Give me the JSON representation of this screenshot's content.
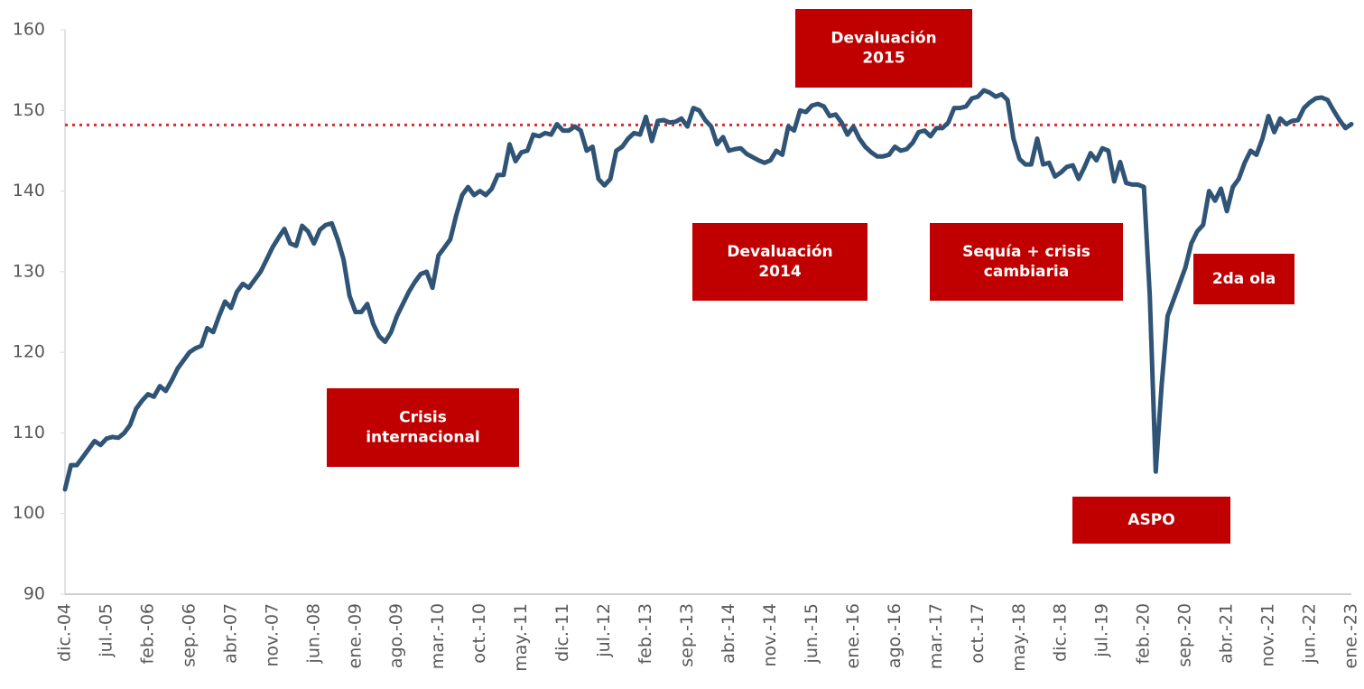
{
  "chart_data": {
    "type": "line",
    "categories": [
      "dic.-04",
      null,
      null,
      null,
      null,
      null,
      null,
      "jul.-05",
      null,
      null,
      null,
      null,
      null,
      null,
      "feb.-06",
      null,
      null,
      null,
      null,
      null,
      null,
      "sep.-06",
      null,
      null,
      null,
      null,
      null,
      null,
      "abr.-07",
      null,
      null,
      null,
      null,
      null,
      null,
      "nov.-07",
      null,
      null,
      null,
      null,
      null,
      null,
      "jun.-08",
      null,
      null,
      null,
      null,
      null,
      null,
      "ene.-09",
      null,
      null,
      null,
      null,
      null,
      null,
      "ago.-09",
      null,
      null,
      null,
      null,
      null,
      null,
      "mar.-10",
      null,
      null,
      null,
      null,
      null,
      null,
      "oct.-10",
      null,
      null,
      null,
      null,
      null,
      null,
      "may.-11",
      null,
      null,
      null,
      null,
      null,
      null,
      "dic.-11",
      null,
      null,
      null,
      null,
      null,
      null,
      "jul.-12",
      null,
      null,
      null,
      null,
      null,
      null,
      "feb.-13",
      null,
      null,
      null,
      null,
      null,
      null,
      "sep.-13",
      null,
      null,
      null,
      null,
      null,
      null,
      "abr.-14",
      null,
      null,
      null,
      null,
      null,
      null,
      "nov.-14",
      null,
      null,
      null,
      null,
      null,
      null,
      "jun.-15",
      null,
      null,
      null,
      null,
      null,
      null,
      "ene.-16",
      null,
      null,
      null,
      null,
      null,
      null,
      "ago.-16",
      null,
      null,
      null,
      null,
      null,
      null,
      "mar.-17",
      null,
      null,
      null,
      null,
      null,
      null,
      "oct.-17",
      null,
      null,
      null,
      null,
      null,
      null,
      "may.-18",
      null,
      null,
      null,
      null,
      null,
      null,
      "dic.-18",
      null,
      null,
      null,
      null,
      null,
      null,
      "jul.-19",
      null,
      null,
      null,
      null,
      null,
      null,
      "feb.-20",
      null,
      null,
      null,
      null,
      null,
      null,
      "sep.-20",
      null,
      null,
      null,
      null,
      null,
      null,
      "abr.-21",
      null,
      null,
      null,
      null,
      null,
      null,
      "nov.-21",
      null,
      null,
      null,
      null,
      null,
      null,
      "jun.-22",
      null,
      null,
      null,
      null,
      null,
      null,
      "ene.-23"
    ],
    "values": [
      103,
      106,
      106,
      107,
      108,
      109,
      108.5,
      109.3,
      109.5,
      109.4,
      110,
      111,
      113,
      114,
      114.8,
      114.5,
      115.8,
      115.2,
      116.5,
      118,
      119,
      120,
      120.5,
      120.8,
      123,
      122.5,
      124.5,
      126.3,
      125.5,
      127.5,
      128.5,
      128,
      129,
      130,
      131.5,
      133,
      134.2,
      135.3,
      133.5,
      133.2,
      135.7,
      135,
      133.5,
      135.2,
      135.8,
      136,
      134,
      131.5,
      127,
      125,
      125,
      126,
      123.5,
      122,
      121.3,
      122.5,
      124.5,
      126,
      127.5,
      128.7,
      129.7,
      130,
      128,
      132,
      133,
      134,
      137,
      139.5,
      140.5,
      139.5,
      140,
      139.5,
      140.3,
      142,
      142,
      145.8,
      143.7,
      144.8,
      145,
      147,
      146.8,
      147.2,
      147,
      148.3,
      147.5,
      147.5,
      148,
      147.5,
      145,
      145.5,
      141.5,
      140.7,
      141.5,
      145,
      145.5,
      146.5,
      147.2,
      147,
      149.2,
      146.2,
      148.7,
      148.8,
      148.5,
      148.6,
      149,
      148,
      150.3,
      150,
      148.8,
      148,
      145.8,
      146.7,
      145,
      145.2,
      145.3,
      144.6,
      144.2,
      143.8,
      143.5,
      143.8,
      145,
      144.5,
      148,
      147.5,
      150,
      149.8,
      150.6,
      150.8,
      150.5,
      149.3,
      149.5,
      148.5,
      147,
      148,
      146.5,
      145.5,
      144.8,
      144.3,
      144.3,
      144.5,
      145.5,
      145,
      145.2,
      146,
      147.3,
      147.5,
      146.8,
      147.8,
      147.8,
      148.5,
      150.3,
      150.3,
      150.5,
      151.5,
      151.7,
      152.5,
      152.2,
      151.7,
      152,
      151.3,
      146.5,
      144,
      143.3,
      143.3,
      146.5,
      143.3,
      143.5,
      141.8,
      142.3,
      143,
      143.2,
      141.5,
      143,
      144.7,
      143.8,
      145.3,
      145,
      141.2,
      143.6,
      141,
      140.8,
      140.8,
      140.5,
      127,
      105.2,
      116,
      124.5,
      126.5,
      128.5,
      130.5,
      133.5,
      135,
      135.8,
      140,
      138.8,
      140.3,
      137.5,
      140.5,
      141.5,
      143.5,
      145,
      144.5,
      146.5,
      149.3,
      147.3,
      149,
      148.3,
      148.7,
      148.8,
      150.3,
      151,
      151.5,
      151.6,
      151.3,
      150,
      148.8,
      147.8,
      148.3
    ],
    "color": "#2f5476",
    "ylim": [
      90,
      160
    ],
    "yticks": [
      90,
      100,
      110,
      120,
      130,
      140,
      150,
      160
    ],
    "reference_line": {
      "value": 148.2,
      "color": "#d32f2f"
    },
    "annotations": [
      {
        "lines": [
          "Crisis",
          "internacional"
        ],
        "color": "#c00000"
      },
      {
        "lines": [
          "Devaluación",
          "2014"
        ],
        "color": "#c00000"
      },
      {
        "lines": [
          "Devaluación",
          "2015"
        ],
        "color": "#c00000"
      },
      {
        "lines": [
          "Sequía + crisis",
          "cambiaria"
        ],
        "color": "#c00000"
      },
      {
        "lines": [
          "ASPO"
        ],
        "color": "#c00000"
      },
      {
        "lines": [
          "2da ola"
        ],
        "color": "#c00000"
      }
    ]
  }
}
